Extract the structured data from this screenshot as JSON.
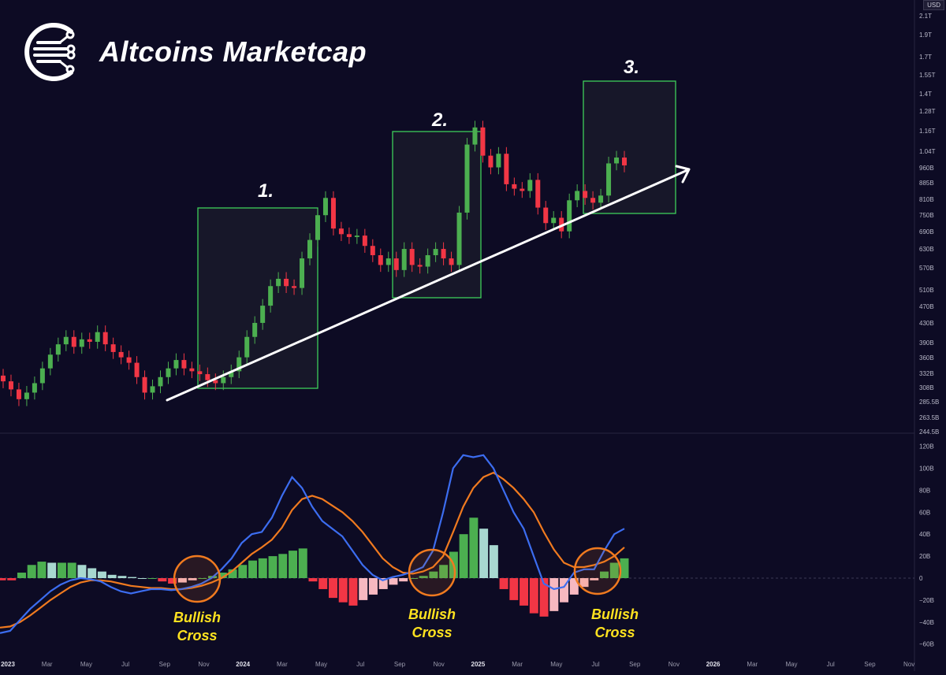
{
  "brand": {
    "name": "Altcoins Marketcap"
  },
  "currency_badge": "USD",
  "colors": {
    "background": "#0d0b24",
    "bull": "#4caf50",
    "bear": "#f23645",
    "box": "#3ecf5a",
    "macd": "#3c6df0",
    "signal": "#f07a1f",
    "hist_green_strong": "#4caf50",
    "hist_green_light": "#a8d8d0",
    "hist_red_strong": "#f23645",
    "hist_red_light": "#f7b8c0",
    "annotation_text": "#ffe21f"
  },
  "zone_labels": [
    "1.",
    "2.",
    "3."
  ],
  "annotations": [
    "Bullish\nCross",
    "Bullish\nCross",
    "Bullish\nCross"
  ],
  "chart_data": [
    {
      "type": "candlestick",
      "title": "",
      "y_scale": "log",
      "y_ticks": [
        "2.1T",
        "1.9T",
        "1.7T",
        "1.55T",
        "1.4T",
        "1.28T",
        "1.16T",
        "1.04T",
        "960B",
        "885B",
        "810B",
        "750B",
        "690B",
        "630B",
        "570B",
        "510B",
        "470B",
        "430B",
        "390B",
        "360B",
        "332B",
        "308B",
        "285.5B",
        "263.5B",
        "244.5B"
      ],
      "x_ticks": [
        "2023",
        "Mar",
        "May",
        "Jul",
        "Sep",
        "Nov",
        "2024",
        "Mar",
        "May",
        "Jul",
        "Sep",
        "Nov",
        "2025",
        "Mar",
        "May",
        "Jul",
        "Sep",
        "Nov",
        "2026",
        "Mar",
        "May",
        "Jul",
        "Sep",
        "Nov"
      ],
      "closes_B": [
        318,
        305,
        290,
        300,
        315,
        340,
        365,
        385,
        400,
        380,
        395,
        390,
        410,
        385,
        370,
        360,
        350,
        325,
        300,
        310,
        325,
        340,
        355,
        340,
        335,
        330,
        320,
        315,
        325,
        335,
        360,
        400,
        430,
        470,
        520,
        540,
        520,
        515,
        600,
        660,
        750,
        820,
        700,
        680,
        670,
        675,
        640,
        610,
        580,
        600,
        565,
        630,
        580,
        575,
        610,
        630,
        600,
        580,
        760,
        1080,
        1180,
        1020,
        960,
        1030,
        880,
        860,
        850,
        900,
        780,
        720,
        740,
        690,
        810,
        850,
        820,
        800,
        830,
        980,
        1010,
        970
      ],
      "trendline": {
        "from": {
          "date": "2023-08",
          "value_B": 295
        },
        "to": {
          "date": "2025-09",
          "value_B": 900
        }
      },
      "zones": [
        {
          "label": "1.",
          "from": "2023-10",
          "to": "2024-03",
          "low_B": 308,
          "high_B": 800
        },
        {
          "label": "2.",
          "from": "2024-08",
          "to": "2024-12",
          "low_B": 505,
          "high_B": 1180
        },
        {
          "label": "3.",
          "from": "2025-06",
          "to": "2025-09",
          "low_B": 770,
          "high_B": 1450
        }
      ]
    },
    {
      "type": "macd",
      "y_ticks": [
        "120B",
        "100B",
        "80B",
        "60B",
        "40B",
        "20B",
        "0",
        "−20B",
        "−40B",
        "−60B"
      ],
      "macd": [
        -50,
        -48,
        -38,
        -28,
        -20,
        -12,
        -6,
        -2,
        0,
        -1,
        -3,
        -8,
        -12,
        -14,
        -12,
        -10,
        -10,
        -11,
        -10,
        -8,
        -5,
        0,
        8,
        18,
        32,
        40,
        42,
        55,
        75,
        92,
        82,
        65,
        52,
        45,
        38,
        25,
        12,
        3,
        -2,
        1,
        3,
        6,
        10,
        25,
        60,
        100,
        112,
        110,
        112,
        100,
        80,
        60,
        45,
        20,
        -5,
        -10,
        -8,
        5,
        8,
        8,
        25,
        40,
        45
      ],
      "signal": [
        -45,
        -44,
        -40,
        -34,
        -27,
        -20,
        -14,
        -8,
        -4,
        -2,
        -2,
        -3,
        -5,
        -7,
        -8,
        -9,
        -9,
        -10,
        -10,
        -9,
        -7,
        -4,
        0,
        6,
        14,
        22,
        28,
        35,
        46,
        62,
        72,
        75,
        72,
        66,
        60,
        52,
        42,
        30,
        18,
        10,
        5,
        4,
        6,
        10,
        20,
        42,
        65,
        82,
        92,
        96,
        90,
        82,
        72,
        60,
        42,
        26,
        14,
        10,
        10,
        12,
        15,
        20,
        28
      ],
      "histogram": [
        -2,
        -2,
        5,
        12,
        15,
        14,
        14,
        14,
        12,
        9,
        6,
        3,
        2,
        1,
        0,
        0,
        -3,
        -5,
        -4,
        -2,
        0,
        2,
        5,
        8,
        12,
        16,
        18,
        20,
        22,
        25,
        27,
        -3,
        -10,
        -18,
        -22,
        -25,
        -20,
        -15,
        -10,
        -6,
        -3,
        0,
        2,
        6,
        12,
        24,
        40,
        55,
        45,
        30,
        -10,
        -20,
        -25,
        -32,
        -35,
        -30,
        -22,
        -15,
        -8,
        -2,
        6,
        14,
        18
      ]
    }
  ]
}
